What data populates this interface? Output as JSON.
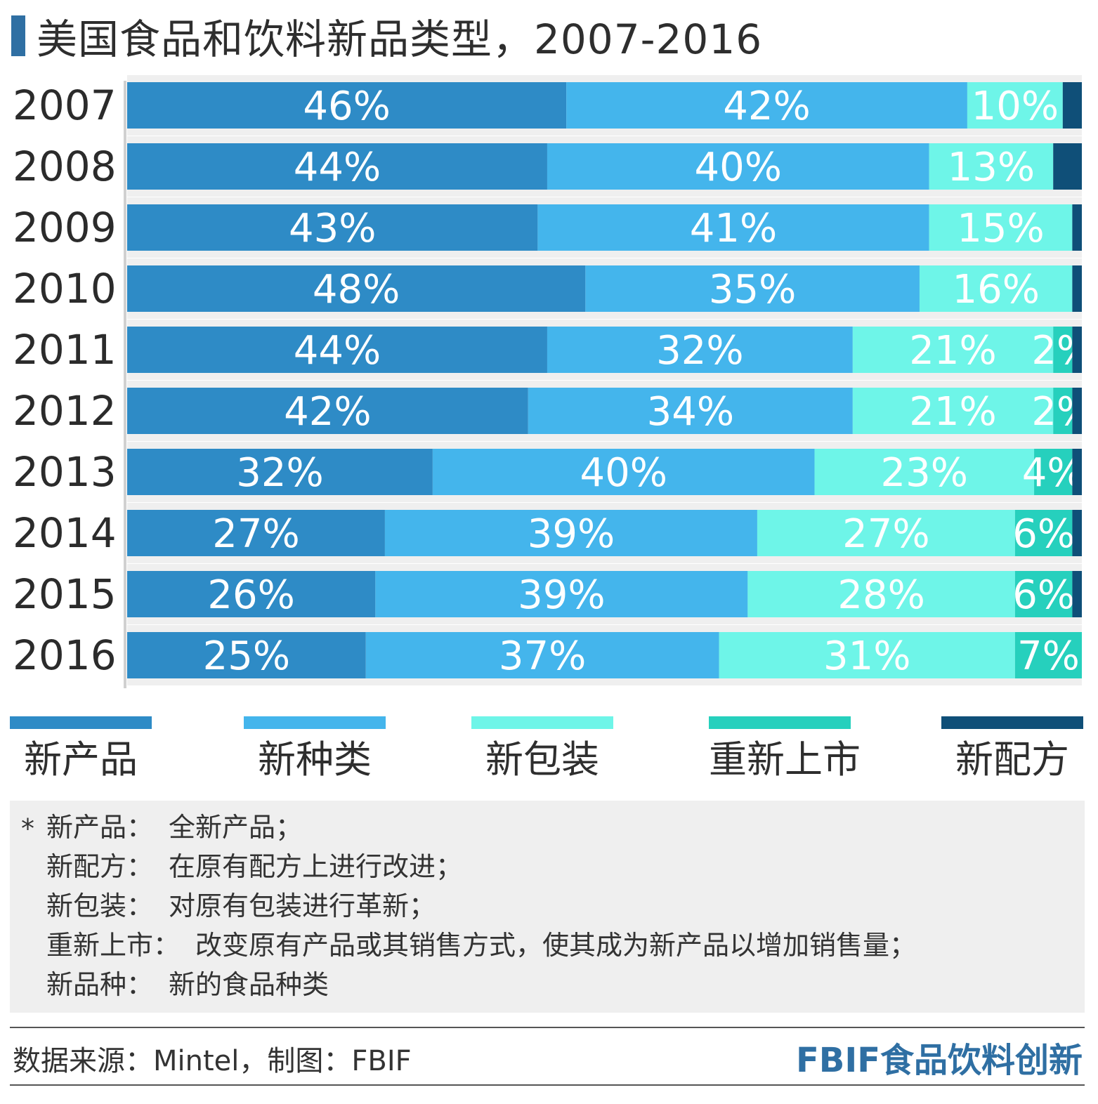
{
  "title": "美国食品和饮料新品类型，2007-2016",
  "colors": {
    "title_bar": "#2f6fa3",
    "brand": "#2f6fa3",
    "row_background": "#efefef",
    "notes_background": "#efefef"
  },
  "chart_data": {
    "type": "bar",
    "orientation": "horizontal",
    "stacked": true,
    "title": "美国食品和饮料新品类型，2007-2016",
    "categories": [
      "2007",
      "2008",
      "2009",
      "2010",
      "2011",
      "2012",
      "2013",
      "2014",
      "2015",
      "2016"
    ],
    "series": [
      {
        "name": "新产品",
        "color": "#2e8bc6",
        "values": [
          46,
          44,
          43,
          48,
          44,
          42,
          32,
          27,
          26,
          25
        ]
      },
      {
        "name": "新种类",
        "color": "#44b5ec",
        "values": [
          42,
          40,
          41,
          35,
          32,
          34,
          40,
          39,
          39,
          37
        ]
      },
      {
        "name": "新包装",
        "color": "#6ef5e8",
        "values": [
          10,
          13,
          15,
          16,
          21,
          21,
          23,
          27,
          28,
          31
        ]
      },
      {
        "name": "重新上市",
        "color": "#26d0bd",
        "values": [
          0,
          0,
          0,
          0,
          2,
          2,
          4,
          6,
          6,
          7
        ]
      },
      {
        "name": "新配方",
        "color": "#0f4f78",
        "values": [
          2,
          3,
          1,
          1,
          1,
          1,
          1,
          1,
          1,
          0
        ]
      }
    ],
    "value_labels": [
      [
        "46%",
        "42%",
        "10%",
        "",
        ""
      ],
      [
        "44%",
        "40%",
        "13%",
        "",
        ""
      ],
      [
        "43%",
        "41%",
        "15%",
        "",
        ""
      ],
      [
        "48%",
        "35%",
        "16%",
        "",
        ""
      ],
      [
        "44%",
        "32%",
        "21%",
        "2%",
        ""
      ],
      [
        "42%",
        "34%",
        "21%",
        "2%",
        ""
      ],
      [
        "32%",
        "40%",
        "23%",
        "4%",
        ""
      ],
      [
        "27%",
        "39%",
        "27%",
        "6%",
        ""
      ],
      [
        "26%",
        "39%",
        "28%",
        "6%",
        ""
      ],
      [
        "25%",
        "37%",
        "31%",
        "7%",
        ""
      ]
    ],
    "xlim": [
      0,
      100
    ],
    "legend_position": "bottom"
  },
  "notes": {
    "marker": "*",
    "items": [
      {
        "term": "新产品：",
        "desc": "全新产品；"
      },
      {
        "term": "新配方：",
        "desc": "在原有配方上进行改进；"
      },
      {
        "term": "新包装：",
        "desc": "对原有包装进行革新；"
      },
      {
        "term": "重新上市：",
        "desc": "改变原有产品或其销售方式，使其成为新产品以增加销售量；"
      },
      {
        "term": "新品种：",
        "desc": "新的食品种类"
      }
    ]
  },
  "footer": {
    "source": "数据来源：Mintel，制图：FBIF",
    "brand": "FBIF食品饮料创新"
  }
}
